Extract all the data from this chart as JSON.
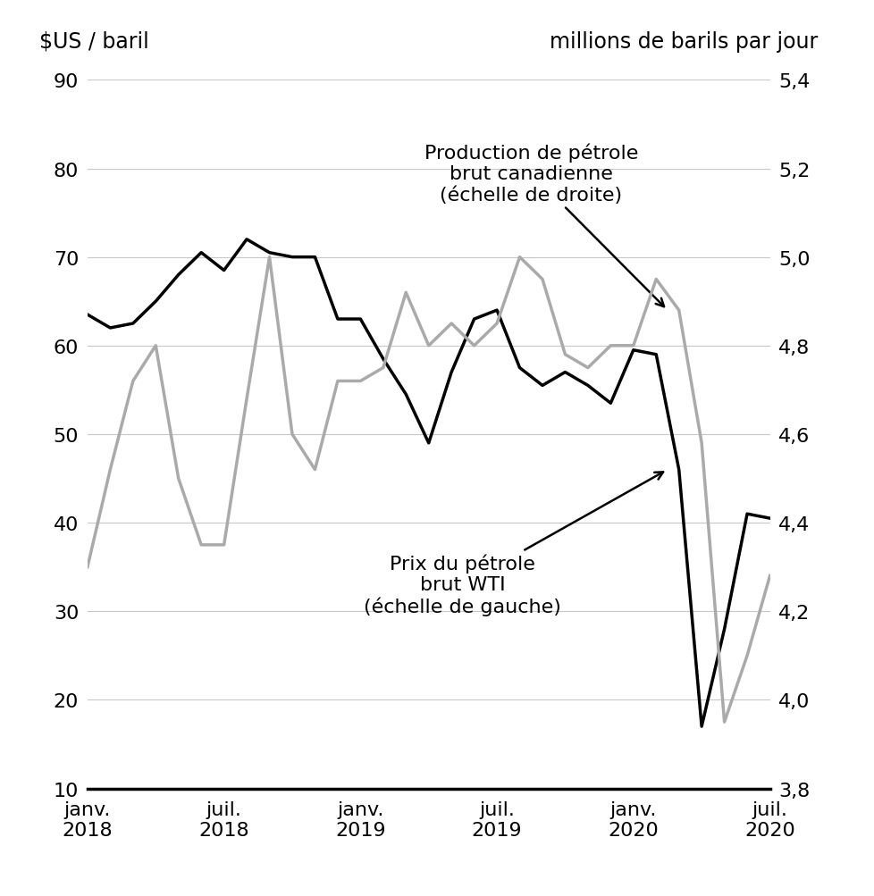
{
  "left_header": "$US / baril",
  "right_header": "millions de barils par jour",
  "ylim_left": [
    10,
    90
  ],
  "ylim_right": [
    3.8,
    5.4
  ],
  "yticks_left": [
    10,
    20,
    30,
    40,
    50,
    60,
    70,
    80,
    90
  ],
  "yticks_right": [
    3.8,
    4.0,
    4.2,
    4.4,
    4.6,
    4.8,
    5.0,
    5.2,
    5.4
  ],
  "ytick_labels_right": [
    "3,8",
    "4,0",
    "4,2",
    "4,4",
    "4,6",
    "4,8",
    "5,0",
    "5,2",
    "5,4"
  ],
  "xtick_labels": [
    "janv.\n2018",
    "juil.\n2018",
    "janv.\n2019",
    "juil.\n2019",
    "janv.\n2020",
    "juil.\n2020"
  ],
  "xtick_positions": [
    0,
    6,
    12,
    18,
    24,
    30
  ],
  "wti_x": [
    0,
    1,
    2,
    3,
    4,
    5,
    6,
    7,
    8,
    9,
    10,
    11,
    12,
    13,
    14,
    15,
    16,
    17,
    18,
    19,
    20,
    21,
    22,
    23,
    24,
    25,
    26,
    27,
    28,
    29,
    30
  ],
  "wti_y": [
    63.5,
    62.0,
    62.5,
    65.0,
    68.0,
    70.5,
    68.5,
    72.0,
    70.5,
    70.0,
    70.0,
    63.0,
    63.0,
    58.5,
    54.5,
    49.0,
    57.0,
    63.0,
    64.0,
    57.5,
    55.5,
    57.0,
    55.5,
    53.5,
    59.5,
    59.0,
    46.0,
    17.0,
    28.0,
    41.0,
    40.5
  ],
  "prod_x": [
    0,
    1,
    2,
    3,
    4,
    5,
    6,
    7,
    8,
    9,
    10,
    11,
    12,
    13,
    14,
    15,
    16,
    17,
    18,
    19,
    20,
    21,
    22,
    23,
    24,
    25,
    26,
    27,
    28,
    29,
    30
  ],
  "prod_y": [
    4.3,
    4.52,
    4.72,
    4.8,
    4.5,
    4.35,
    4.35,
    4.68,
    5.0,
    4.6,
    4.52,
    4.72,
    4.72,
    4.75,
    4.92,
    4.8,
    4.85,
    4.8,
    4.85,
    5.0,
    4.95,
    4.78,
    4.75,
    4.8,
    4.8,
    4.95,
    4.88,
    4.58,
    3.95,
    4.1,
    4.28
  ],
  "wti_color": "#000000",
  "prod_color": "#aaaaaa",
  "grid_color": "#c8c8c8",
  "background_color": "#ffffff",
  "annotation1_text": "Production de pétrole\nbrut canadienne\n(échelle de droite)",
  "annotation2_text": "Prix du pétrole\nbrut WTI\n(échelle de gauche)",
  "fontsize_header": 17,
  "fontsize_ticks": 16,
  "fontsize_annot": 16
}
